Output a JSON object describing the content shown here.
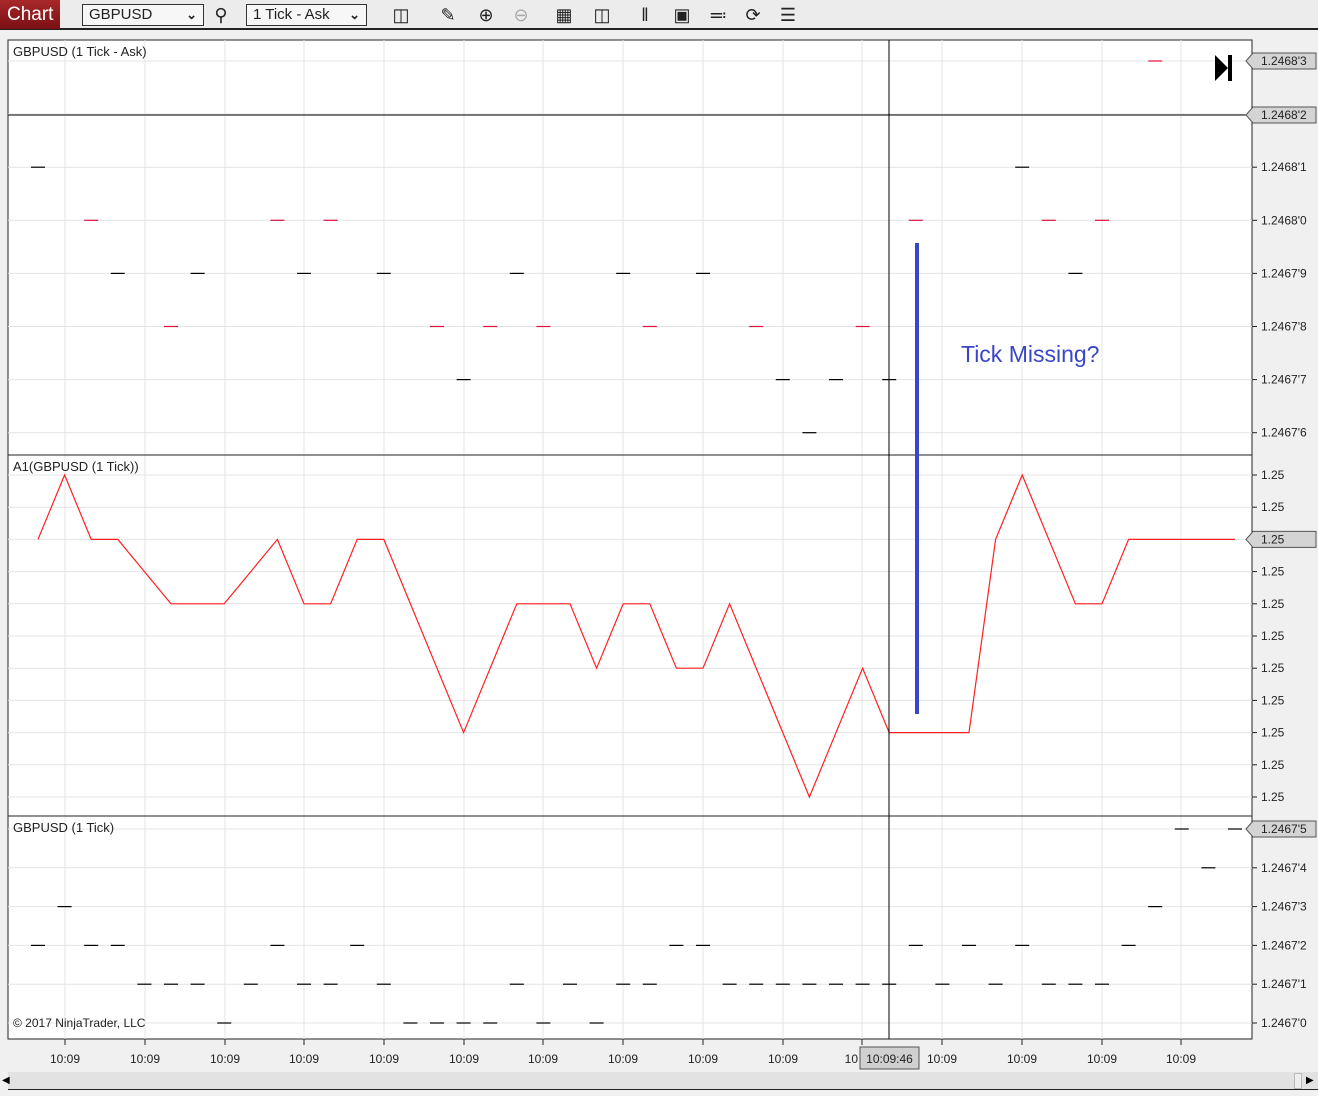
{
  "toolbar": {
    "chart_label": "Chart",
    "instrument": "GBPUSD",
    "interval": "1 Tick - Ask",
    "icons": [
      "search-icon",
      "bar-type-icon",
      "pencil-icon",
      "zoom-in-icon",
      "zoom-out-icon",
      "crosshair-icon",
      "data-box-icon",
      "right-margin-icon",
      "chart-style-icon",
      "drawing-tools-icon",
      "reload-icon",
      "indicators-list-icon"
    ]
  },
  "colors": {
    "up": "#e0103c",
    "down": "#000000",
    "indicator": "#ff2020",
    "annotation": "#3a46c8"
  },
  "panels": [
    {
      "title": "GBPUSD (1 Tick - Ask)",
      "ticks": [
        "1.2468'3",
        "1.2468'2",
        "1.2468'1",
        "1.2468'0",
        "1.2467'9",
        "1.2467'8",
        "1.2467'7",
        "1.2467'6"
      ],
      "bars": [
        [
          0,
          "1",
          "down"
        ],
        [
          2,
          "0",
          "up"
        ],
        [
          3,
          "9",
          "down"
        ],
        [
          5,
          "8",
          "up"
        ],
        [
          6,
          "9",
          "down"
        ],
        [
          9,
          "0",
          "up"
        ],
        [
          10,
          "9",
          "down"
        ],
        [
          11,
          "0",
          "up"
        ],
        [
          13,
          "9",
          "down"
        ],
        [
          15,
          "8",
          "up"
        ],
        [
          16,
          "7",
          "down"
        ],
        [
          17,
          "8",
          "up"
        ],
        [
          18,
          "9",
          "down"
        ],
        [
          19,
          "8",
          "up"
        ],
        [
          22,
          "9",
          "down"
        ],
        [
          23,
          "8",
          "up"
        ],
        [
          25,
          "9",
          "down"
        ],
        [
          27,
          "8",
          "up"
        ],
        [
          28,
          "7",
          "down"
        ],
        [
          29,
          "6",
          "down"
        ],
        [
          30,
          "7",
          "down"
        ],
        [
          31,
          "8",
          "up"
        ],
        [
          32,
          "7",
          "down"
        ],
        [
          33,
          "0",
          "up"
        ],
        [
          37,
          "1",
          "down"
        ],
        [
          38,
          "0",
          "up"
        ],
        [
          39,
          "9",
          "down"
        ],
        [
          40,
          "0",
          "up"
        ],
        [
          42,
          "3",
          "up"
        ]
      ],
      "price_marker": "1.2468'3",
      "crosshair_price": "1.2468'2"
    },
    {
      "title": "A1(GBPUSD (1 Tick))",
      "ticks": [
        "1.25",
        "1.25",
        "1.25",
        "1.25",
        "1.25",
        "1.25",
        "1.25",
        "1.25",
        "1.25",
        "1.25",
        "1.25"
      ],
      "line": [
        [
          0,
          2
        ],
        [
          1,
          0
        ],
        [
          2,
          2
        ],
        [
          3,
          2
        ],
        [
          5,
          4
        ],
        [
          7,
          4
        ],
        [
          9,
          2
        ],
        [
          10,
          4
        ],
        [
          11,
          4
        ],
        [
          12,
          2
        ],
        [
          13,
          2
        ],
        [
          16,
          8
        ],
        [
          18,
          4
        ],
        [
          20,
          4
        ],
        [
          21,
          6
        ],
        [
          22,
          4
        ],
        [
          23,
          4
        ],
        [
          24,
          6
        ],
        [
          25,
          6
        ],
        [
          26,
          4
        ],
        [
          29,
          10
        ],
        [
          31,
          6
        ],
        [
          32,
          8
        ],
        [
          35,
          8
        ],
        [
          36,
          2
        ],
        [
          37,
          0
        ],
        [
          39,
          4
        ],
        [
          40,
          4
        ],
        [
          41,
          2
        ],
        [
          45,
          2
        ]
      ],
      "price_marker": "1.25"
    },
    {
      "title": "GBPUSD (1 Tick)",
      "ticks": [
        "1.2467'5",
        "1.2467'4",
        "1.2467'3",
        "1.2467'2",
        "1.2467'1",
        "1.2467'0"
      ],
      "bars": [
        2,
        3,
        2,
        2,
        1,
        1,
        1,
        0,
        1,
        2,
        1,
        1,
        2,
        1,
        0,
        0,
        0,
        0,
        1,
        0,
        1,
        0,
        1,
        1,
        2,
        2,
        1,
        1,
        1,
        1,
        1,
        1,
        1,
        2,
        1,
        2,
        1,
        2,
        1,
        1,
        1,
        2,
        3,
        5,
        4,
        5
      ],
      "price_marker": "1.2467'5"
    }
  ],
  "copyright": "© 2017 NinjaTrader, LLC",
  "x_axis": {
    "labels": [
      "10:09",
      "10:09",
      "10:09",
      "10:09",
      "10:09",
      "10:09",
      "10:09",
      "10:09",
      "10:09",
      "10:09",
      "10",
      "10:09",
      "10:09",
      "10:09",
      "10:09"
    ],
    "crosshair_time": "10:09:46"
  },
  "annotation": {
    "text": "Tick Missing?"
  }
}
